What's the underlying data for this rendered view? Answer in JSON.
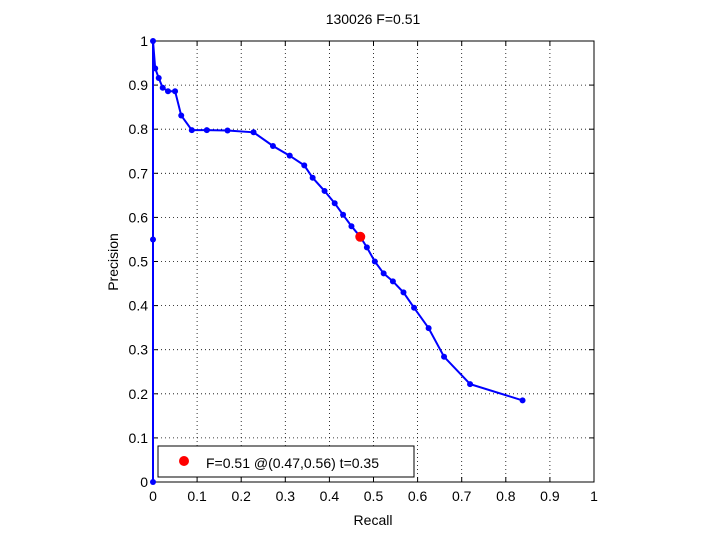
{
  "chart_data": {
    "type": "line",
    "title": "130026 F=0.51",
    "xlabel": "Recall",
    "ylabel": "Precision",
    "xlim": [
      0,
      1
    ],
    "ylim": [
      0,
      1
    ],
    "grid": true,
    "xticks": [
      "0",
      "0.1",
      "0.2",
      "0.3",
      "0.4",
      "0.5",
      "0.6",
      "0.7",
      "0.8",
      "0.9",
      "1"
    ],
    "yticks": [
      "0",
      "0.1",
      "0.2",
      "0.3",
      "0.4",
      "0.5",
      "0.6",
      "0.7",
      "0.8",
      "0.9",
      "1"
    ],
    "series": [
      {
        "color": "#0000ff",
        "x": [
          0.0,
          0.0,
          0.0,
          0.005,
          0.013,
          0.022,
          0.034,
          0.05,
          0.064,
          0.088,
          0.122,
          0.169,
          0.228,
          0.272,
          0.31,
          0.343,
          0.362,
          0.389,
          0.412,
          0.431,
          0.45,
          0.47,
          0.485,
          0.503,
          0.523,
          0.544,
          0.568,
          0.592,
          0.625,
          0.66,
          0.719,
          0.838
        ],
        "y": [
          0.0,
          0.55,
          1.0,
          0.938,
          0.916,
          0.894,
          0.886,
          0.886,
          0.831,
          0.798,
          0.798,
          0.797,
          0.793,
          0.762,
          0.74,
          0.718,
          0.69,
          0.66,
          0.632,
          0.606,
          0.58,
          0.556,
          0.532,
          0.5,
          0.473,
          0.455,
          0.43,
          0.395,
          0.349,
          0.284,
          0.222,
          0.185
        ]
      }
    ],
    "highlight": {
      "x": 0.47,
      "y": 0.556,
      "color": "#ff0000"
    },
    "legend": {
      "position": "bottom-left",
      "label": "F=0.51 @(0.47,0.56) t=0.35"
    }
  }
}
